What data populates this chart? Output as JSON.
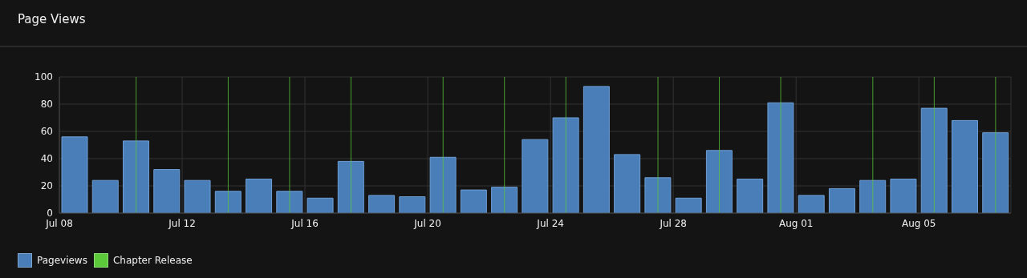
{
  "chart_data": {
    "type": "bar",
    "title": "Page Views",
    "x": [
      "--07-08T12:00",
      "--07-09T12:00",
      "--07-10T12:00",
      "--07-11T12:00",
      "--07-12T12:00",
      "--07-13T12:00",
      "--07-14T12:00",
      "--07-15T12:00",
      "--07-16T12:00",
      "--07-17T12:00",
      "--07-18T12:00",
      "--07-19T12:00",
      "--07-20T12:00",
      "--07-21T12:00",
      "--07-22T12:00",
      "--07-23T12:00",
      "--07-24T12:00",
      "--07-25T12:00",
      "--07-26T12:00",
      "--07-27T12:00",
      "--07-28T12:00",
      "--07-29T12:00",
      "--07-30T12:00",
      "--07-31T12:00",
      "--08-01T12:00",
      "--08-02T12:00",
      "--08-03T12:00",
      "--08-04T12:00",
      "--08-05T12:00",
      "--08-06T12:00",
      "--08-07T12:00"
    ],
    "series": [
      {
        "name": "Pageviews",
        "color": "#4a7eb8",
        "values": [
          56,
          24,
          53,
          32,
          24,
          16,
          25,
          16,
          11,
          38,
          13,
          12,
          41,
          17,
          19,
          54,
          70,
          93,
          43,
          26,
          11,
          46,
          25,
          81,
          13,
          18,
          24,
          25,
          77,
          68,
          59
        ]
      }
    ],
    "xlim": [
      "--07-08",
      "--08-08"
    ],
    "xticks": [
      {
        "value": "--07-08",
        "label": "Jul 08"
      },
      {
        "value": "--07-12",
        "label": "Jul 12"
      },
      {
        "value": "--07-16",
        "label": "Jul 16"
      },
      {
        "value": "--07-20",
        "label": "Jul 20"
      },
      {
        "value": "--07-24",
        "label": "Jul 24"
      },
      {
        "value": "--07-28",
        "label": "Jul 28"
      },
      {
        "value": "--08-01",
        "label": "Aug 01"
      },
      {
        "value": "--08-05",
        "label": "Aug 05"
      }
    ],
    "ylim": [
      0,
      100
    ],
    "yticks": [
      0,
      20,
      40,
      60,
      80,
      100
    ],
    "ref_lines": [
      {
        "axis": "x",
        "value": "--07-10T12:00",
        "label": "Chapter Release",
        "color": "#5cc93a"
      },
      {
        "axis": "x",
        "value": "--07-13T12:00",
        "color": "#5cc93a"
      },
      {
        "axis": "x",
        "value": "--07-15T12:00",
        "color": "#5cc93a"
      },
      {
        "axis": "x",
        "value": "--07-17T12:00",
        "color": "#5cc93a"
      },
      {
        "axis": "x",
        "value": "--07-20T12:00",
        "color": "#5cc93a"
      },
      {
        "axis": "x",
        "value": "--07-22T12:00",
        "color": "#5cc93a"
      },
      {
        "axis": "x",
        "value": "--07-24T12:00",
        "color": "#5cc93a"
      },
      {
        "axis": "x",
        "value": "--07-27T12:00",
        "color": "#5cc93a"
      },
      {
        "axis": "x",
        "value": "--07-29T12:00",
        "color": "#5cc93a"
      },
      {
        "axis": "x",
        "value": "--07-31T12:00",
        "color": "#5cc93a"
      },
      {
        "axis": "x",
        "value": "--08-03T12:00",
        "color": "#5cc93a"
      },
      {
        "axis": "x",
        "value": "--08-05T12:00",
        "color": "#5cc93a"
      },
      {
        "axis": "x",
        "value": "--08-07T12:00",
        "color": "#5cc93a"
      }
    ],
    "grid": true,
    "legend": "bottom left"
  }
}
